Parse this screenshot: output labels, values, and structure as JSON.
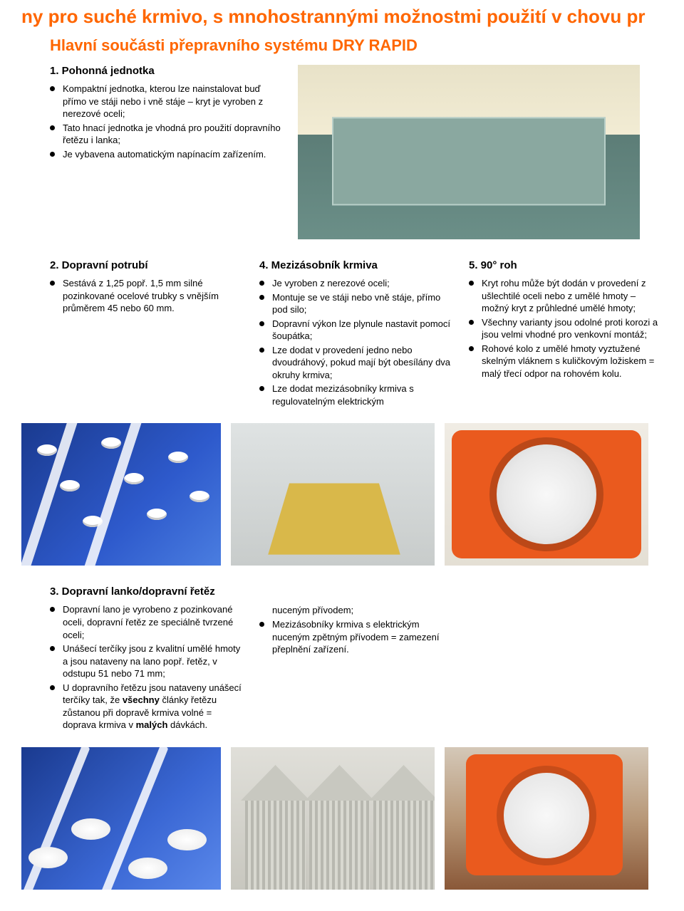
{
  "top_title": "ny pro suché krmivo, s mnohostrannými možnostmi použití v chovu pr",
  "sub_title": "Hlavní součásti přepravního systému DRY RAPID",
  "section1": {
    "heading": "1. Pohonná jednotka",
    "items": [
      "Kompaktní jednotka, kterou lze nainstalovat buď přímo ve stáji nebo i vně stáje – kryt je vyroben z nerezové oceli;",
      "Tato hnací jednotka je vhodná pro použití dopravního řetězu i lanka;",
      "Je vybavena automatickým napínacím zařízením."
    ]
  },
  "section2": {
    "heading": "2. Dopravní potrubí",
    "items": [
      "Sestává z 1,25 popř. 1,5 mm silné pozinkované ocelové trubky s vnějším průměrem 45 nebo 60 mm."
    ]
  },
  "section4": {
    "heading": "4. Mezizásobník krmiva",
    "items": [
      "Je vyroben z nerezové oceli;",
      "Montuje se ve stáji nebo vně stáje, přímo pod silo;",
      "Dopravní výkon lze plynule nastavit pomocí šoupátka;",
      "Lze dodat v provedení jedno nebo dvoudráhový, pokud mají být obesílány dva okruhy krmiva;",
      "Lze dodat mezizásobníky krmiva s regulovatelným elektrickým"
    ]
  },
  "section5": {
    "heading": "5. 90° roh",
    "items": [
      "Kryt rohu může být dodán v provedení z ušlechtilé oceli nebo z umělé hmoty – možný kryt z průhledné umělé hmoty;",
      "Všechny varianty jsou odolné proti korozi a jsou velmi vhodné pro venkovní montáž;",
      "Rohové kolo z umělé hmoty vyztužené skelným vláknem s kuličkovým ložiskem = malý třecí odpor na rohovém kolu."
    ]
  },
  "section3": {
    "heading": "3. Dopravní lanko/dopravní řetěz",
    "items": [
      "Dopravní lano je vyrobeno z pozinkované oceli, dopravní řetěz ze speciálně tvrzené oceli;",
      "Unášecí terčíky jsou z kvalitní umělé hmoty a jsou nataveny na lano popř. řetěz, v odstupu 51 nebo 71 mm;",
      "U dopravního řetězu jsou nataveny unášecí terčíky tak, že <b>všechny</b> články řetězu zůstanou při dopravě krmiva volné = doprava krmiva v <b>malých</b> dávkách."
    ]
  },
  "section4b": {
    "items": [
      "nuceným přívodem;",
      "Mezizásobníky krmiva s elektrickým nuceným zpětným přívodem = zamezení přeplnění zařízení."
    ]
  },
  "colors": {
    "orange": "#ff6600",
    "text": "#000000",
    "bg": "#ffffff"
  }
}
